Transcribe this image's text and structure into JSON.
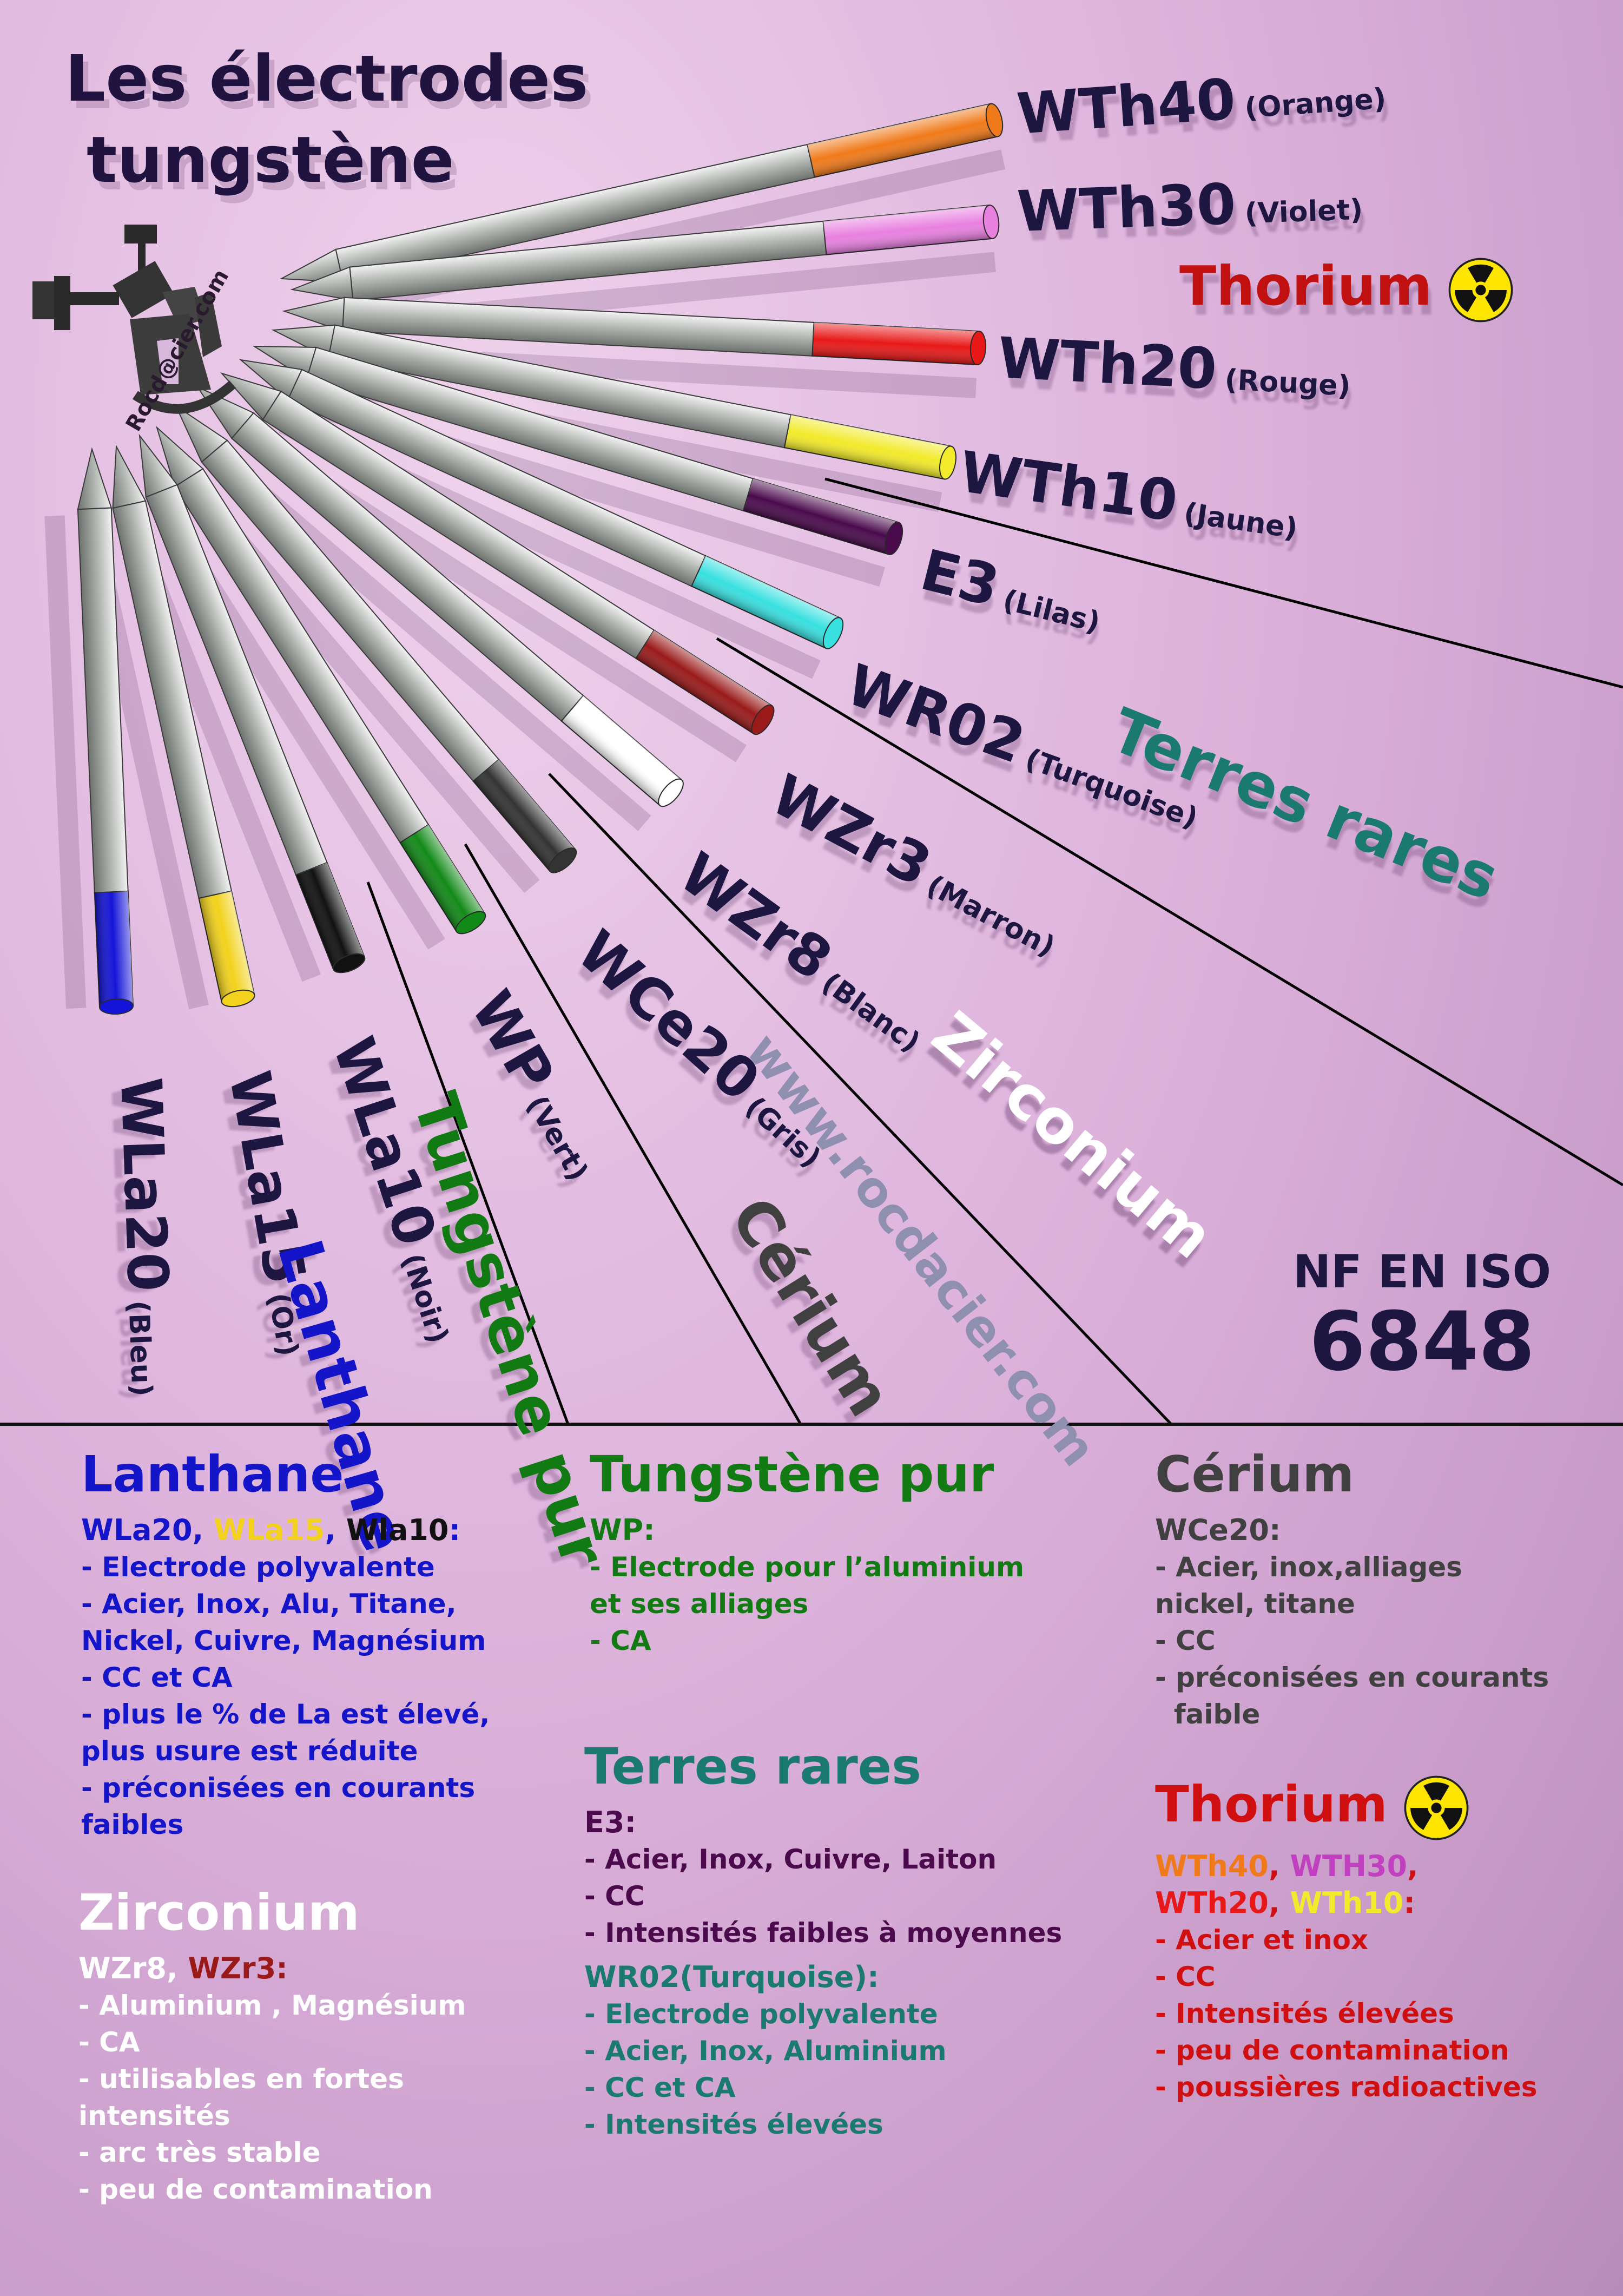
{
  "title": {
    "line1": "Les électrodes",
    "line2": "tungstène"
  },
  "logo": {
    "text": "Rocd@cier.com",
    "icon": "welder-robot-icon"
  },
  "electrodes": [
    {
      "code": "WTh40",
      "color_name": "(Orange)",
      "color": "#f07a1a"
    },
    {
      "code": "WTh30",
      "color_name": "(Violet)",
      "color": "#e880e0"
    },
    {
      "code": "WTh20",
      "color_name": "(Rouge)",
      "color": "#e81818"
    },
    {
      "code": "WTh10",
      "color_name": "(Jaune)",
      "color": "#f2ea2a"
    },
    {
      "code": "E3",
      "color_name": "(Lilas)",
      "color": "#4a0a4c"
    },
    {
      "code": "WR02",
      "color_name": "(Turquoise)",
      "color": "#38e0e0"
    },
    {
      "code": "WZr3",
      "color_name": "(Marron)",
      "color": "#9a1a1a"
    },
    {
      "code": "WZr8",
      "color_name": "(Blanc)",
      "color": "#ffffff"
    },
    {
      "code": "WCe20",
      "color_name": "(Gris)",
      "color": "#333333"
    },
    {
      "code": "WP",
      "color_name": "(Vert)",
      "color": "#128a18"
    },
    {
      "code": "WLa10",
      "color_name": "(Noir)",
      "color": "#111111"
    },
    {
      "code": "WLa15",
      "color_name": "(Or)",
      "color": "#f2d21c"
    },
    {
      "code": "WLa20",
      "color_name": "(Bleu)",
      "color": "#1414d8"
    }
  ],
  "groups": {
    "thorium": "Thorium",
    "terres_rares": "Terres rares",
    "zirconium": "Zirconium",
    "cerium": "Cérium",
    "tungstene_pur": "Tungstène pur",
    "lanthane": "Lanthane"
  },
  "website": "www.rocdacier.com",
  "standard": {
    "line1": "NF EN ISO",
    "line2": "6848"
  },
  "radiation_icon": "radiation-icon",
  "colors": {
    "lanthane": "#1414c8",
    "tungstene": "#127a12",
    "cerium": "#404040",
    "thorium": "#d01010",
    "terres_rares": "#1a7a70",
    "zirconium": "#ffffff",
    "e3": "#4a0a4c",
    "title": "#20133f"
  },
  "sections": {
    "lanthane": {
      "heading": "Lanthane",
      "sub": [
        {
          "text": "WLa20",
          "color": "#1414c8"
        },
        {
          "text": ", ",
          "color": "#1414c8"
        },
        {
          "text": "WLa15",
          "color": "#f2d21c"
        },
        {
          "text": ", ",
          "color": "#1414c8"
        },
        {
          "text": "Wla10",
          "color": "#111111"
        },
        {
          "text": ":",
          "color": "#1414c8"
        }
      ],
      "items": [
        "- Electrode polyvalente",
        "- Acier, Inox, Alu, Titane,",
        "Nickel, Cuivre, Magnésium",
        "- CC et CA",
        "- plus le % de La est élevé,",
        "plus usure est réduite",
        "- préconisées en courants",
        "faibles"
      ]
    },
    "zirconium": {
      "heading": "Zirconium",
      "sub": [
        {
          "text": "WZr8",
          "color": "#ffffff"
        },
        {
          "text": ", ",
          "color": "#ffffff"
        },
        {
          "text": "WZr3",
          "color": "#9a1a1a"
        },
        {
          "text": ":",
          "color": "#9a1a1a"
        }
      ],
      "items": [
        "- Aluminium , Magnésium",
        "- CA",
        "- utilisables en fortes",
        "intensités",
        "- arc très stable",
        "- peu de contamination"
      ]
    },
    "tungstene": {
      "heading": "Tungstène pur",
      "sub": [
        {
          "text": "WP:",
          "color": "#127a12"
        }
      ],
      "items": [
        "- Electrode pour l’aluminium",
        "et ses alliages",
        "- CA"
      ]
    },
    "terres_rares": {
      "heading": "Terres rares",
      "e3_sub": "E3:",
      "e3_items": [
        "- Acier, Inox, Cuivre, Laiton",
        "- CC",
        "- Intensités faibles à moyennes"
      ],
      "wr02_sub": "WR02(Turquoise):",
      "wr02_items": [
        "- Electrode polyvalente",
        "- Acier, Inox, Aluminium",
        "- CC et CA",
        "- Intensités élevées"
      ]
    },
    "cerium": {
      "heading": "Cérium",
      "sub": [
        {
          "text": "WCe20:",
          "color": "#404040"
        }
      ],
      "items": [
        "- Acier, inox,alliages",
        "nickel, titane",
        "- CC",
        "- préconisées en courants",
        "  faible"
      ]
    },
    "thorium": {
      "heading": "Thorium",
      "sub": [
        {
          "text": "WTh40",
          "color": "#f07a1a"
        },
        {
          "text": ", ",
          "color": "#d01010"
        },
        {
          "text": "WTH30",
          "color": "#c040c0"
        },
        {
          "text": ",",
          "color": "#d01010"
        }
      ],
      "sub2": [
        {
          "text": "WTh20",
          "color": "#e81818"
        },
        {
          "text": ", ",
          "color": "#d01010"
        },
        {
          "text": "WTh10",
          "color": "#f2ea2a"
        },
        {
          "text": ":",
          "color": "#d01010"
        }
      ],
      "items": [
        "- Acier et inox",
        "- CC",
        "- Intensités élevées",
        "- peu de contamination",
        "- poussières radioactives"
      ]
    }
  }
}
